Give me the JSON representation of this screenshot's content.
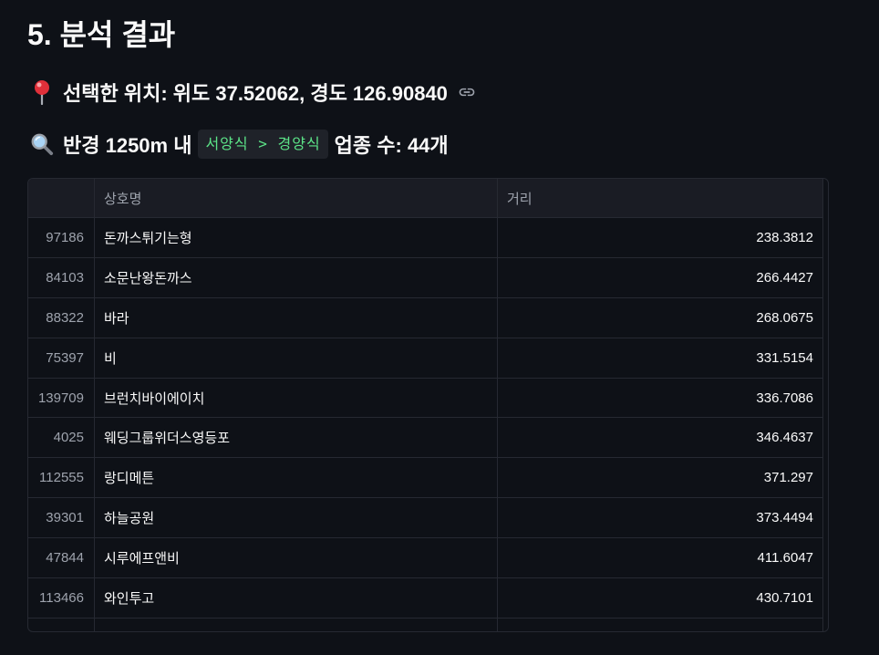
{
  "heading": {
    "title": "5. 분석 결과"
  },
  "location": {
    "icon": "round-pushpin",
    "text": "선택한 위치: 위도 37.52062, 경도 126.90840",
    "anchor_icon": "link-icon"
  },
  "radius": {
    "icon": "magnifying-glass",
    "prefix": "반경 1250m 내",
    "category_path": "서양식 > 경양식",
    "suffix": "업종 수: 44개"
  },
  "table": {
    "columns": [
      "",
      "상호명",
      "거리"
    ],
    "rows": [
      {
        "index": 97186,
        "name": "돈까스튀기는형",
        "distance": 238.3812
      },
      {
        "index": 84103,
        "name": "소문난왕돈까스",
        "distance": 266.4427
      },
      {
        "index": 88322,
        "name": "바라",
        "distance": 268.0675
      },
      {
        "index": 75397,
        "name": "비",
        "distance": 331.5154
      },
      {
        "index": 139709,
        "name": "브런치바이에이치",
        "distance": 336.7086
      },
      {
        "index": 4025,
        "name": "웨딩그룹위더스영등포",
        "distance": 346.4637
      },
      {
        "index": 112555,
        "name": "랑디메튼",
        "distance": 371.297
      },
      {
        "index": 39301,
        "name": "하늘공원",
        "distance": 373.4494
      },
      {
        "index": 47844,
        "name": "시루에프앤비",
        "distance": 411.6047
      },
      {
        "index": 113466,
        "name": "와인투고",
        "distance": 430.7101
      }
    ]
  },
  "colors": {
    "background": "#0e1117",
    "text": "#fafafa",
    "muted": "#9ea3ad",
    "grid_line": "#262932",
    "header_bg": "#1a1c24",
    "code_bg": "#1f2229",
    "code_text": "#5ce488",
    "pin_red": "#e0303a",
    "lens_blue": "#a9d4f5"
  }
}
